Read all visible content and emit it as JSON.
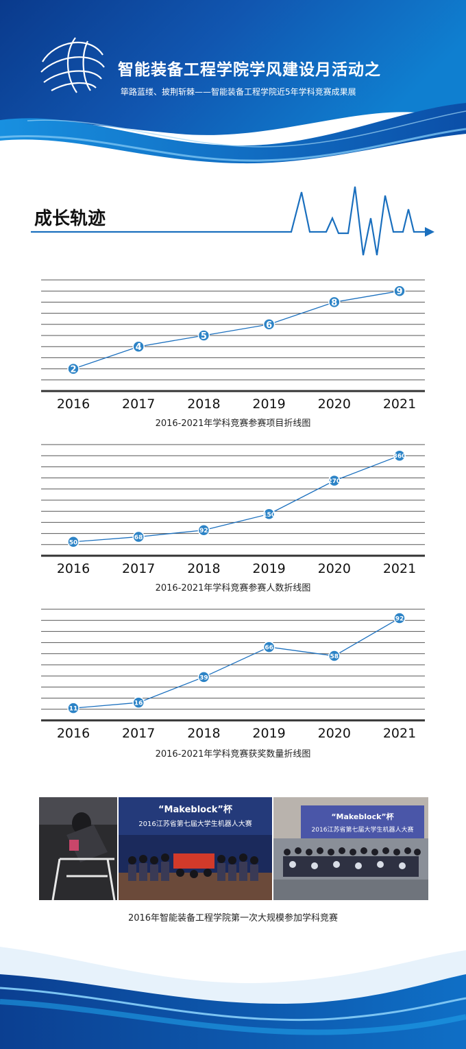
{
  "header": {
    "title": "智能装备工程学院学风建设月活动之",
    "subtitle": "筚路蓝缕、披荆斩棘——智能装备工程学院近5年学科竞赛成果展"
  },
  "section_title": "成长轨迹",
  "colors": {
    "primary": "#1a6fbe",
    "dark_blue": "#0b3f91",
    "point_fill": "#2c83c6",
    "axis": "#333333"
  },
  "chart_data": [
    {
      "type": "line",
      "title": "2016-2021年学科竞赛参赛项目折线图",
      "categories": [
        "2016",
        "2017",
        "2018",
        "2019",
        "2020",
        "2021"
      ],
      "series": [
        {
          "values": [
            2,
            4,
            5,
            6,
            8,
            9
          ]
        }
      ],
      "ylim": [
        0,
        10
      ],
      "grid": true
    },
    {
      "type": "line",
      "title": "2016-2021年学科竞赛参赛人数折线图",
      "categories": [
        "2016",
        "2017",
        "2018",
        "2019",
        "2020",
        "2021"
      ],
      "series": [
        {
          "values": [
            50,
            68,
            92,
            150,
            270,
            360
          ]
        }
      ],
      "ylim": [
        0,
        400
      ],
      "grid": true
    },
    {
      "type": "line",
      "title": "2016-2021年学科竞赛获奖数量折线图",
      "categories": [
        "2016",
        "2017",
        "2018",
        "2019",
        "2020",
        "2021"
      ],
      "series": [
        {
          "values": [
            11,
            16,
            39,
            66,
            58,
            92
          ]
        }
      ],
      "ylim": [
        0,
        100
      ],
      "grid": true
    }
  ],
  "photos": {
    "caption": "2016年智能装备工程学院第一次大规模参加学科竞赛",
    "banner_text": "\"Makeblock\"杯 2016江苏省第七届大学生机器人大赛"
  }
}
